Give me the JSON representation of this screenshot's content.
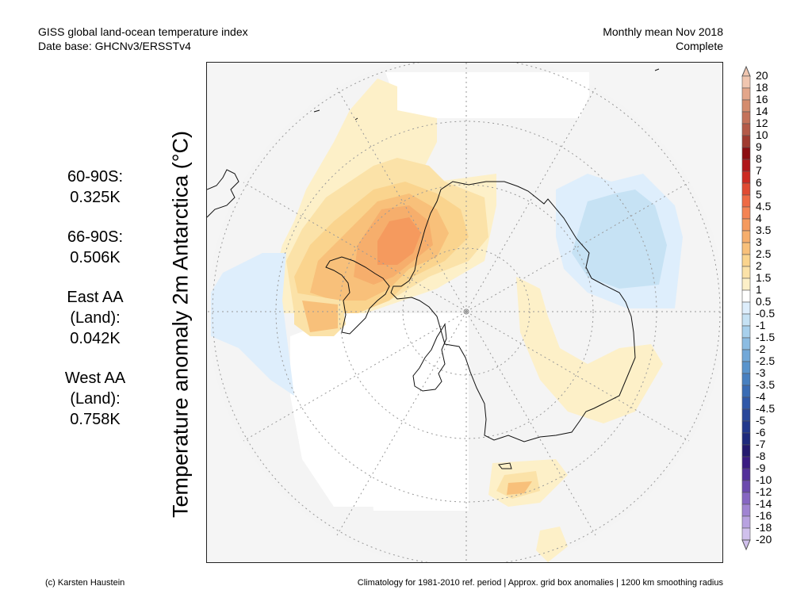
{
  "header": {
    "title_line1": "GISS global land-ocean temperature index",
    "title_line2": "Date base: GHCNv3/ERSSTv4",
    "right_line1": "Monthly mean Nov 2018",
    "right_line2": "Complete"
  },
  "vertical_title": "Temperature anomaly 2m Antarctica (°C)",
  "stats": [
    {
      "lines": [
        "60-90S:",
        "0.325K"
      ]
    },
    {
      "lines": [
        "66-90S:",
        "0.506K"
      ]
    },
    {
      "lines": [
        "East AA",
        "(Land):",
        "0.042K"
      ]
    },
    {
      "lines": [
        "West AA",
        "(Land):",
        "0.758K"
      ]
    }
  ],
  "legend": {
    "labels": [
      "20",
      "18",
      "16",
      "14",
      "12",
      "10",
      "9",
      "8",
      "7",
      "6",
      "5",
      "4.5",
      "4",
      "3.5",
      "3",
      "2.5",
      "2",
      "1.5",
      "1",
      "0.5",
      "-0.5",
      "-1",
      "-1.5",
      "-2",
      "-2.5",
      "-3",
      "-3.5",
      "-4",
      "-4.5",
      "-5",
      "-6",
      "-7",
      "-8",
      "-9",
      "-10",
      "-12",
      "-14",
      "-16",
      "-18",
      "-20"
    ],
    "colors": [
      "#f0c6b0",
      "#e3a68a",
      "#d48c6e",
      "#c4725a",
      "#b45a48",
      "#a03a30",
      "#8c0e12",
      "#b0161a",
      "#cc2a22",
      "#e04a32",
      "#ee6a44",
      "#f48454",
      "#f59a5e",
      "#f6ae6c",
      "#f8c07a",
      "#fad48e",
      "#fbe2a8",
      "#fdf0c8",
      "#ffffff",
      "#deeefc",
      "#c6e2f4",
      "#a8d0ec",
      "#8cbce2",
      "#72a8d8",
      "#5a94cc",
      "#4880c0",
      "#3a6cb4",
      "#3058a8",
      "#28469a",
      "#22388c",
      "#1e2a7c",
      "#241a6e",
      "#3a1c82",
      "#52309a",
      "#6c4aae",
      "#8666c2",
      "#a084d2",
      "#b8a2e0",
      "#d0c0ec"
    ]
  },
  "footer": {
    "left": "(c) Karsten Haustein",
    "right": "Climatology for 1981-2010 ref. period | Approx. grid box anomalies | 1200 km smoothing radius"
  }
}
